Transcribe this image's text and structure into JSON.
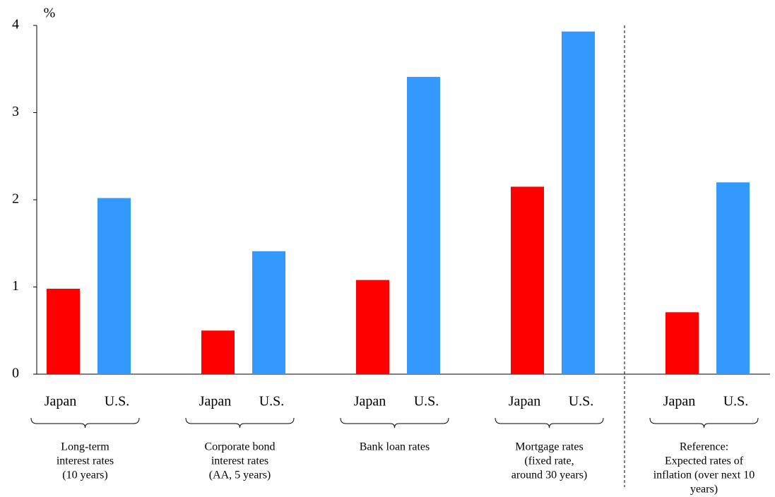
{
  "chart_data": {
    "type": "bar",
    "unit_label": "%",
    "categories": [
      [
        "Long-term",
        "interest rates",
        "(10 years)"
      ],
      [
        "Corporate bond",
        "interest rates",
        "(AA, 5 years)"
      ],
      [
        "Bank loan rates"
      ],
      [
        "Mortgage rates",
        "(fixed rate,",
        "around 30 years)"
      ],
      [
        "Reference:",
        "Expected rates of",
        "inflation (over next 10",
        "years)"
      ]
    ],
    "series": [
      {
        "name": "Japan",
        "color": "#ff0000",
        "values": [
          0.98,
          0.5,
          1.08,
          2.15,
          0.71
        ]
      },
      {
        "name": "U.S.",
        "color": "#3399ff",
        "values": [
          2.02,
          1.41,
          3.41,
          3.93,
          2.2
        ]
      }
    ],
    "ylim": [
      0,
      4
    ],
    "yticks": [
      0,
      1,
      2,
      3,
      4
    ]
  }
}
